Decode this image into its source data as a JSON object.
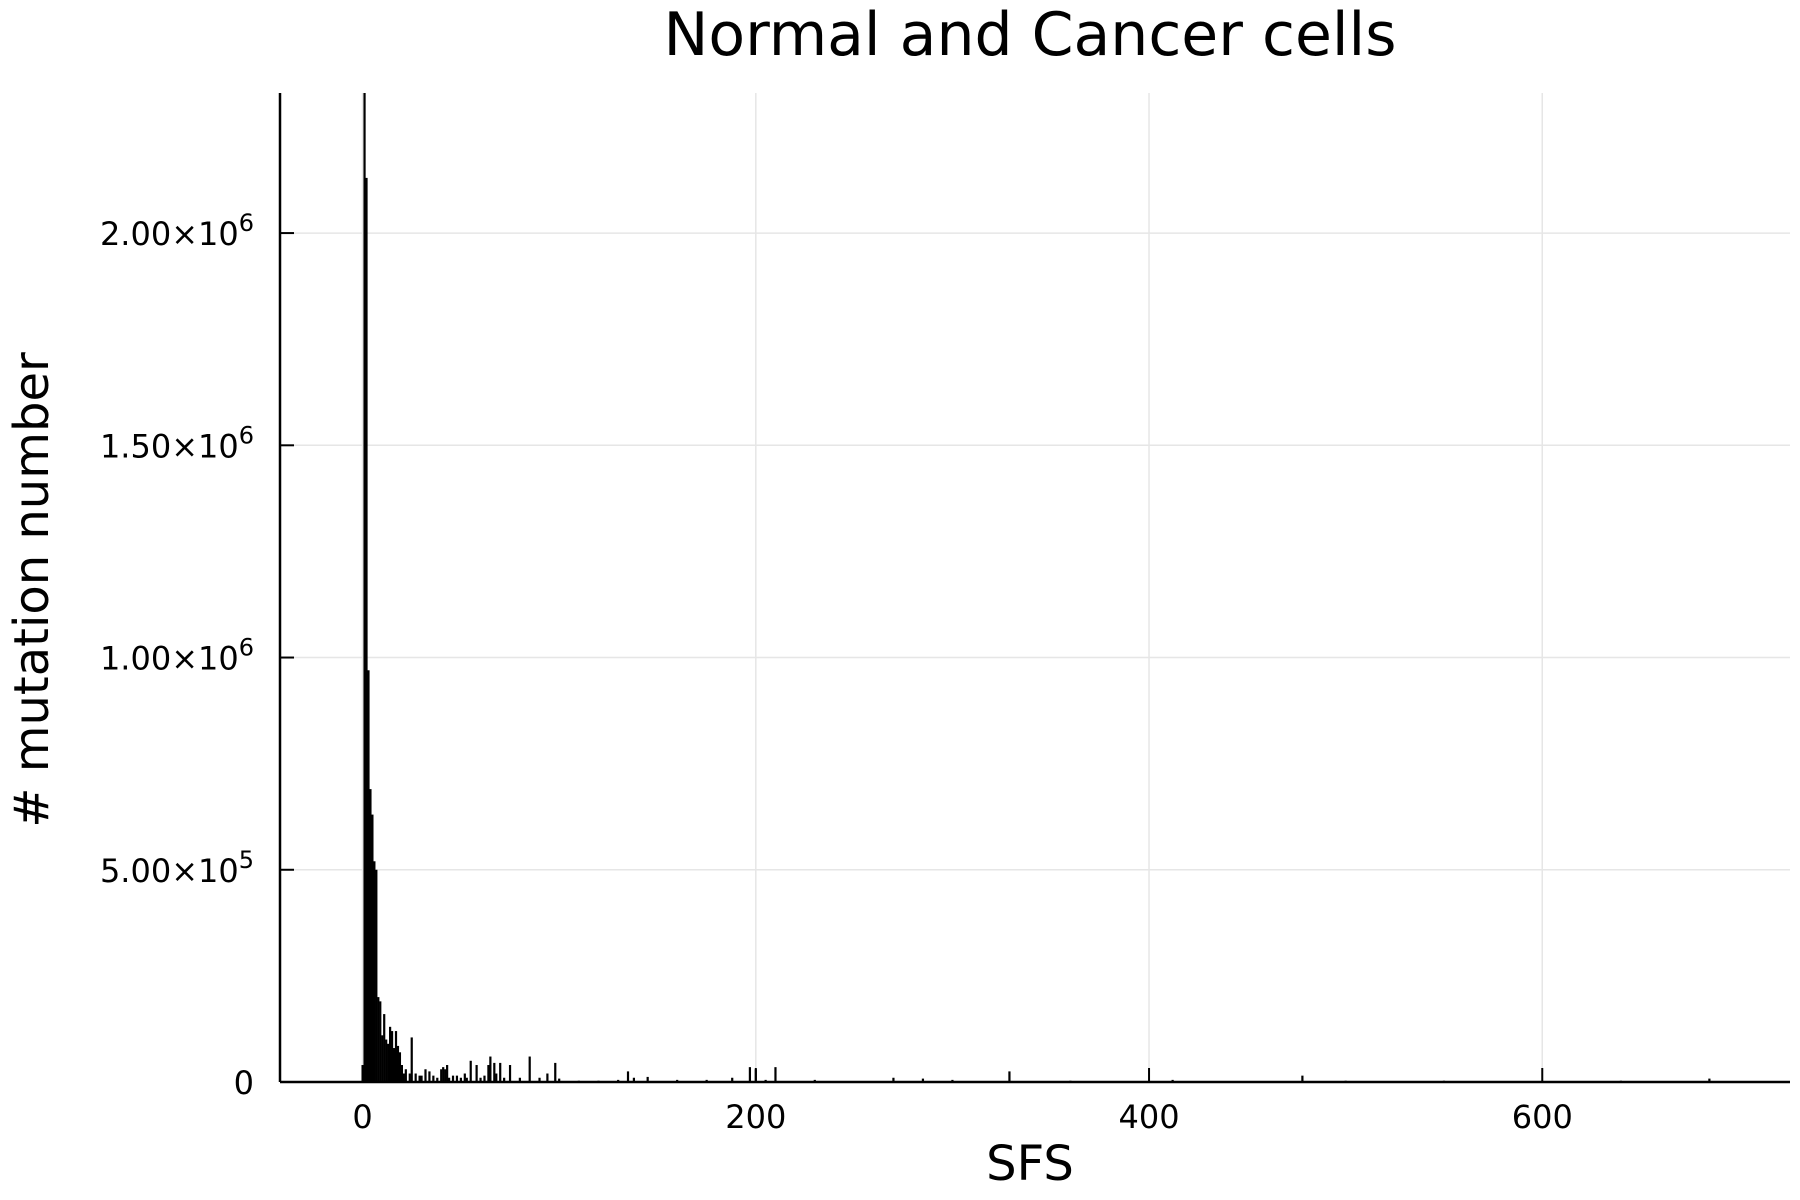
{
  "chart_data": {
    "type": "bar",
    "title": "Normal and Cancer cells",
    "xlabel": "SFS",
    "ylabel": "# mutation number",
    "xlim": [
      -42,
      726
    ],
    "ylim": [
      0,
      2330000
    ],
    "grid": true,
    "legend": "none",
    "x_ticks": [
      {
        "value": 0,
        "label": "0"
      },
      {
        "value": 200,
        "label": "200"
      },
      {
        "value": 400,
        "label": "400"
      },
      {
        "value": 600,
        "label": "600"
      }
    ],
    "y_ticks": [
      {
        "value": 0,
        "mantissa": "0",
        "exponent": ""
      },
      {
        "value": 500000,
        "mantissa": "5.00×10",
        "exponent": "5"
      },
      {
        "value": 1000000,
        "mantissa": "1.00×10",
        "exponent": "6"
      },
      {
        "value": 1500000,
        "mantissa": "1.50×10",
        "exponent": "6"
      },
      {
        "value": 2000000,
        "mantissa": "2.00×10",
        "exponent": "6"
      }
    ],
    "colors": {
      "bars": "#000000",
      "grid": "#e6e6e6",
      "axis": "#000000"
    },
    "series": [
      {
        "x": [
          0,
          1,
          2,
          3,
          4,
          5,
          6,
          7,
          8,
          9,
          10,
          11,
          12,
          13,
          14,
          15,
          16,
          17,
          18,
          19,
          20,
          21,
          22,
          24,
          25,
          27,
          29,
          30,
          32,
          34,
          36,
          38,
          40,
          41,
          42,
          43,
          44,
          46,
          48,
          50,
          52,
          53,
          55,
          58,
          60,
          62,
          64,
          65,
          67,
          68,
          70,
          72,
          75,
          80,
          85,
          90,
          94,
          98,
          100,
          110,
          120,
          130,
          135,
          138,
          145,
          160,
          175,
          188,
          197,
          200,
          205,
          210,
          230,
          270,
          285,
          300,
          329,
          360,
          412,
          478,
          500,
          550,
          640,
          685
        ],
        "values": [
          40000,
          2330000,
          2130000,
          970000,
          690000,
          630000,
          520000,
          500000,
          200000,
          190000,
          110000,
          160000,
          100000,
          90000,
          130000,
          120000,
          80000,
          120000,
          85000,
          70000,
          40000,
          20000,
          30000,
          20000,
          105000,
          20000,
          15000,
          15000,
          30000,
          25000,
          15000,
          10000,
          30000,
          35000,
          30000,
          40000,
          10000,
          15000,
          15000,
          10000,
          20000,
          10000,
          50000,
          40000,
          10000,
          15000,
          40000,
          60000,
          45000,
          20000,
          45000,
          10000,
          40000,
          10000,
          60000,
          10000,
          20000,
          45000,
          8000,
          3000,
          3000,
          5000,
          25000,
          10000,
          12000,
          5000,
          5000,
          10000,
          35000,
          30000,
          5000,
          35000,
          5000,
          10000,
          8000,
          5000,
          25000,
          3000,
          5000,
          15000,
          3000,
          3000,
          3000,
          8000
        ]
      }
    ]
  }
}
